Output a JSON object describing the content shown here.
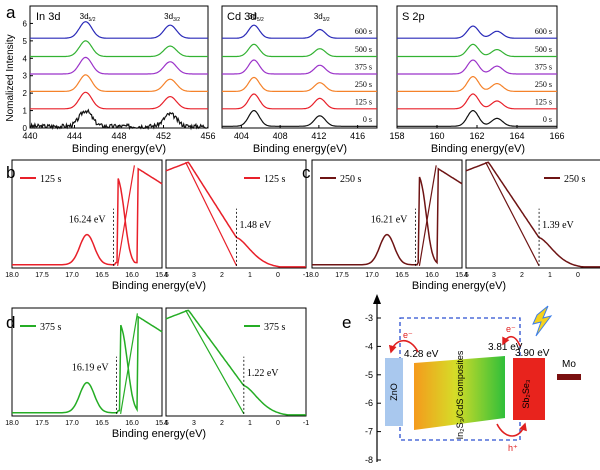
{
  "panel_letters": [
    "a",
    "b",
    "c",
    "d",
    "e"
  ],
  "colors": {
    "t0": "#111111",
    "t125": "#e8202a",
    "t250": "#f5822a",
    "t375": "#9b33c9",
    "t500": "#33b233",
    "t600": "#2a2ab8",
    "b_curve": "#e8202a",
    "c_curve": "#6e1414",
    "d_curve": "#25ad25",
    "title_in": "#8a2bd6",
    "title_cd": "#f07c1e",
    "title_s": "#1fae8c",
    "zno": "#a9c8ee",
    "sbse": "#e8231d",
    "mo": "#7a1010",
    "dash_box": "#2a4fd0",
    "arrow": "#e02020"
  },
  "chart_data": [
    {
      "id": "a-in3d",
      "type": "line",
      "panel": "a",
      "title": "In 3d",
      "xlabel": "Binding energy(eV)",
      "ylabel": "Nomalized Intensity",
      "xlim": [
        440,
        456
      ],
      "ylim": [
        0,
        7
      ],
      "xticks": [
        "440",
        "444",
        "448",
        "452",
        "456"
      ],
      "yticks": [
        "0",
        "1",
        "2",
        "3",
        "4",
        "5",
        "6"
      ],
      "peak_labels": [
        {
          "base": "3d",
          "sub": "5/2"
        },
        {
          "base": "3d",
          "sub": "3/2"
        }
      ],
      "peaks": [
        445.0,
        452.6
      ],
      "series": [
        {
          "name": "0 s",
          "offset": 0.0,
          "heights": [
            0.9,
            0.7
          ],
          "noisy": true
        },
        {
          "name": "125 s",
          "offset": 1.0,
          "heights": [
            0.95,
            0.7
          ]
        },
        {
          "name": "250 s",
          "offset": 2.0,
          "heights": [
            0.95,
            0.7
          ]
        },
        {
          "name": "375 s",
          "offset": 3.0,
          "heights": [
            0.95,
            0.7
          ]
        },
        {
          "name": "500 s",
          "offset": 4.0,
          "heights": [
            0.9,
            0.6
          ]
        },
        {
          "name": "600 s",
          "offset": 5.05,
          "heights": [
            0.95,
            0.75
          ]
        }
      ]
    },
    {
      "id": "a-cd3d",
      "type": "line",
      "panel": "a",
      "title": "Cd 3d",
      "xlabel": "Binding energy(eV)",
      "xlim": [
        402,
        418
      ],
      "ylim": [
        0,
        7
      ],
      "xticks": [
        "404",
        "408",
        "412",
        "416"
      ],
      "peak_labels": [
        {
          "base": "3d",
          "sub": "5/2"
        },
        {
          "base": "3d",
          "sub": "3/2"
        }
      ],
      "peaks": [
        405.3,
        412.1
      ],
      "series": [
        {
          "name": "0 s",
          "offset": 0.0,
          "heights": [
            0.9,
            0.6
          ]
        },
        {
          "name": "125 s",
          "offset": 1.0,
          "heights": [
            0.85,
            0.6
          ]
        },
        {
          "name": "250 s",
          "offset": 2.0,
          "heights": [
            0.8,
            0.5
          ]
        },
        {
          "name": "375 s",
          "offset": 3.0,
          "heights": [
            0.8,
            0.5
          ]
        },
        {
          "name": "500 s",
          "offset": 4.0,
          "heights": [
            0.7,
            0.45
          ]
        },
        {
          "name": "600 s",
          "offset": 5.05,
          "heights": [
            0.75,
            0.5
          ]
        }
      ]
    },
    {
      "id": "a-s2p",
      "type": "line",
      "panel": "a",
      "title": "S 2p",
      "xlabel": "Binding energy(eV)",
      "xlim": [
        158,
        166
      ],
      "ylim": [
        0,
        7
      ],
      "xticks": [
        "158",
        "160",
        "162",
        "164",
        "166"
      ],
      "peaks": [
        161.8,
        163.0
      ],
      "series": [
        {
          "name": "0 s",
          "offset": 0.0,
          "heights": [
            0.9,
            0.45
          ]
        },
        {
          "name": "125 s",
          "offset": 1.0,
          "heights": [
            0.85,
            0.45
          ]
        },
        {
          "name": "250 s",
          "offset": 2.0,
          "heights": [
            0.85,
            0.45
          ]
        },
        {
          "name": "375 s",
          "offset": 3.0,
          "heights": [
            0.8,
            0.45
          ]
        },
        {
          "name": "500 s",
          "offset": 4.0,
          "heights": [
            0.7,
            0.4
          ]
        },
        {
          "name": "600 s",
          "offset": 5.05,
          "heights": [
            0.7,
            0.4
          ]
        }
      ]
    },
    {
      "id": "b",
      "type": "line",
      "panel": "b",
      "legend": "125 s",
      "xlabel": "Binding energy(eV)",
      "left": {
        "xlim": [
          18.0,
          15.5
        ],
        "xticks": [
          "18.0",
          "17.5",
          "17.0",
          "16.5",
          "16.0",
          "15.5"
        ],
        "edge_label": "16.24 eV",
        "edge_value": 16.24
      },
      "right": {
        "xlim": [
          4,
          -1
        ],
        "xticks": [
          "4",
          "3",
          "2",
          "1",
          "0",
          "-1"
        ],
        "edge_label": "1.48 eV",
        "edge_value": 1.48
      }
    },
    {
      "id": "c",
      "type": "line",
      "panel": "c",
      "legend": "250 s",
      "xlabel": "Binding energy(eV)",
      "left": {
        "xlim": [
          18.0,
          15.5
        ],
        "xticks": [
          "18.0",
          "17.5",
          "17.0",
          "16.5",
          "16.0",
          "15.5"
        ],
        "edge_label": "16.21 eV",
        "edge_value": 16.21
      },
      "right": {
        "xlim": [
          4,
          -1
        ],
        "xticks": [
          "4",
          "3",
          "2",
          "1",
          "0",
          "-1"
        ],
        "edge_label": "1.39 eV",
        "edge_value": 1.39
      }
    },
    {
      "id": "d",
      "type": "line",
      "panel": "d",
      "legend": "375 s",
      "xlabel": "Binding energy(eV)",
      "left": {
        "xlim": [
          18.0,
          15.5
        ],
        "xticks": [
          "18.0",
          "17.5",
          "17.0",
          "16.5",
          "16.0",
          "15.5"
        ],
        "edge_label": "16.19 eV",
        "edge_value": 16.19
      },
      "right": {
        "xlim": [
          4,
          -1
        ],
        "xticks": [
          "4",
          "3",
          "2",
          "1",
          "0",
          "-1"
        ],
        "edge_label": "1.22 eV",
        "edge_value": 1.22
      }
    },
    {
      "id": "e",
      "type": "diagram",
      "panel": "e",
      "ylim": [
        -8,
        -3
      ],
      "yticks": [
        "-3",
        "-4",
        "-5",
        "-6",
        "-7",
        "-8"
      ],
      "labels": {
        "zno": "ZnO",
        "composite": "In₂S₃/CdS composites",
        "sbse": "Sb₂Se₃",
        "mo": "Mo",
        "e_minus_1": "e⁻",
        "e_minus_2": "e⁻",
        "h_plus": "h⁺",
        "level_zno": "4.28 eV",
        "level_comp": "3.81 eV",
        "level_sbse": "3.90 eV"
      }
    }
  ]
}
